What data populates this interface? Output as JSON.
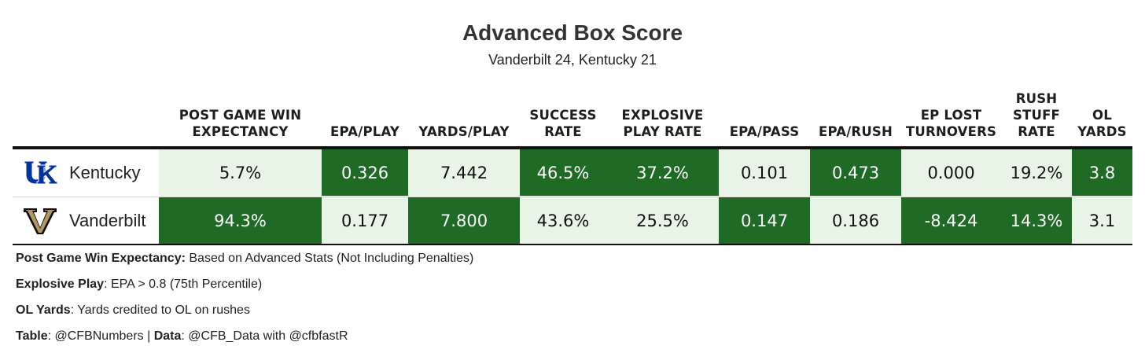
{
  "title": "Advanced Box Score",
  "subtitle": "Vanderbilt 24, Kentucky 21",
  "colors": {
    "dark": "#1f6b26",
    "light": "#e8f5e6",
    "dark_text": "#ffffff",
    "light_text": "#111111"
  },
  "chart_data": {
    "type": "table",
    "title": "Advanced Box Score",
    "subtitle": "Vanderbilt 24, Kentucky 21",
    "columns": [
      "POST GAME WIN EXPECTANCY",
      "EPA/PLAY",
      "YARDS/PLAY",
      "SUCCESS RATE",
      "EXPLOSIVE PLAY RATE",
      "EPA/PASS",
      "EPA/RUSH",
      "EP LOST TURNOVERS",
      "RUSH STUFF RATE",
      "OL YARDS"
    ],
    "rows": [
      {
        "team": "Kentucky",
        "logo": "kentucky-uk-logo-icon",
        "values": [
          "5.7%",
          "0.326",
          "7.442",
          "46.5%",
          "37.2%",
          "0.101",
          "0.473",
          "0.000",
          "19.2%",
          "3.8"
        ],
        "highlight": [
          false,
          true,
          false,
          true,
          true,
          false,
          true,
          false,
          false,
          true
        ]
      },
      {
        "team": "Vanderbilt",
        "logo": "vanderbilt-v-logo-icon",
        "values": [
          "94.3%",
          "0.177",
          "7.800",
          "43.6%",
          "25.5%",
          "0.147",
          "0.186",
          "-8.424",
          "14.3%",
          "3.1"
        ],
        "highlight": [
          true,
          false,
          true,
          false,
          false,
          true,
          false,
          true,
          true,
          false
        ]
      }
    ]
  },
  "footnotes": [
    {
      "label": "Post Game Win Expectancy:",
      "text": " Based on Advanced Stats (Not Including Penalties)"
    },
    {
      "label": "Explosive Play",
      "text": ": EPA > 0.8 (75th Percentile)"
    },
    {
      "label": "OL Yards",
      "text": ": Yards credited to OL on rushes"
    }
  ],
  "credits": {
    "table_label": "Table",
    "table_text": ": @CFBNumbers | ",
    "data_label": "Data",
    "data_text": ": @CFB_Data with @cfbfastR"
  }
}
